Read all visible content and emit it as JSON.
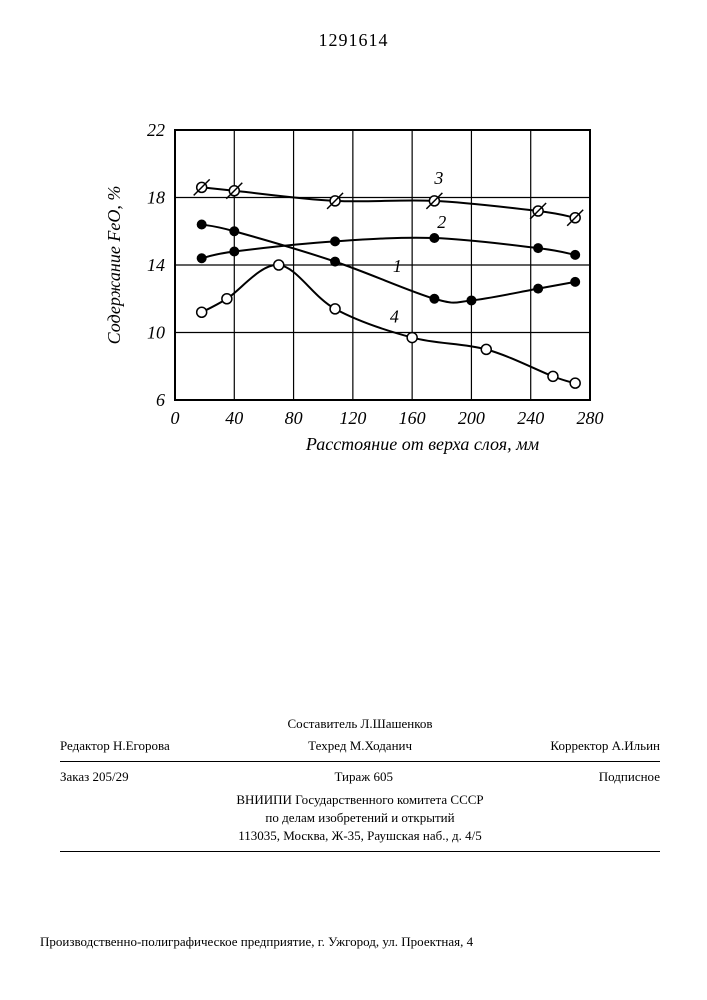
{
  "doc_number": "1291614",
  "chart": {
    "type": "line",
    "background_color": "#ffffff",
    "axis_color": "#000000",
    "grid_color": "#000000",
    "line_width": 2,
    "grid_line_width": 1.2,
    "marker_radius": 5,
    "x": {
      "label": "Расстояние от верха слоя, мм",
      "min": 0,
      "max": 280,
      "ticks": [
        0,
        40,
        80,
        120,
        160,
        200,
        240,
        280
      ]
    },
    "y": {
      "label": "Содержание FeO, %",
      "min": 6,
      "max": 22,
      "ticks": [
        6,
        10,
        14,
        18,
        22
      ]
    },
    "series": [
      {
        "label": "1",
        "marker": "filled",
        "points": [
          {
            "x": 18,
            "y": 16.4
          },
          {
            "x": 40,
            "y": 16.0
          },
          {
            "x": 108,
            "y": 14.2
          },
          {
            "x": 175,
            "y": 12.0
          },
          {
            "x": 200,
            "y": 11.9
          },
          {
            "x": 245,
            "y": 12.6
          },
          {
            "x": 270,
            "y": 13.0
          }
        ],
        "label_pos": {
          "x": 150,
          "y": 13.6
        }
      },
      {
        "label": "2",
        "marker": "filled",
        "points": [
          {
            "x": 18,
            "y": 14.4
          },
          {
            "x": 40,
            "y": 14.8
          },
          {
            "x": 108,
            "y": 15.4
          },
          {
            "x": 175,
            "y": 15.6
          },
          {
            "x": 245,
            "y": 15.0
          },
          {
            "x": 270,
            "y": 14.6
          }
        ],
        "label_pos": {
          "x": 180,
          "y": 16.2
        }
      },
      {
        "label": "3",
        "marker": "open-slash",
        "points": [
          {
            "x": 18,
            "y": 18.6
          },
          {
            "x": 40,
            "y": 18.4
          },
          {
            "x": 108,
            "y": 17.8
          },
          {
            "x": 175,
            "y": 17.8
          },
          {
            "x": 245,
            "y": 17.2
          },
          {
            "x": 270,
            "y": 16.8
          }
        ],
        "label_pos": {
          "x": 178,
          "y": 18.8
        }
      },
      {
        "label": "4",
        "marker": "open",
        "points": [
          {
            "x": 18,
            "y": 11.2
          },
          {
            "x": 35,
            "y": 12.0
          },
          {
            "x": 70,
            "y": 14.0
          },
          {
            "x": 108,
            "y": 11.4
          },
          {
            "x": 160,
            "y": 9.7
          },
          {
            "x": 210,
            "y": 9.0
          },
          {
            "x": 255,
            "y": 7.4
          },
          {
            "x": 270,
            "y": 7.0
          }
        ],
        "label_pos": {
          "x": 148,
          "y": 10.6
        }
      }
    ]
  },
  "credits": {
    "compiler_label": "Составитель",
    "compiler": "Л.Шашенков",
    "editor_label": "Редактор",
    "editor": "Н.Егорова",
    "techred_label": "Техред",
    "techred": "М.Ходанич",
    "corrector_label": "Корректор",
    "corrector": "А.Ильин"
  },
  "imprint": {
    "order": "Заказ 205/29",
    "circulation": "Тираж 605",
    "subscribed": "Подписное",
    "line1": "ВНИИПИ Государственного комитета СССР",
    "line2": "по делам изобретений и открытий",
    "line3": "113035, Москва, Ж-35, Раушская наб., д. 4/5"
  },
  "footer": "Производственно-полиграфическое предприятие, г. Ужгород, ул. Проектная, 4"
}
